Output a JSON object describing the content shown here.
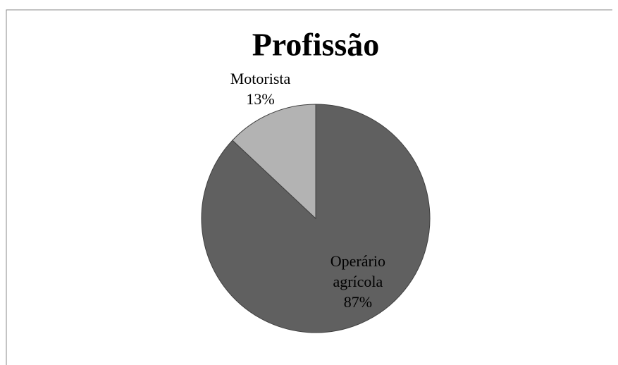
{
  "chart_data": {
    "type": "pie",
    "title": "Profissão",
    "categories": [
      "Operário agrícola",
      "Motorista"
    ],
    "values": [
      87,
      13
    ],
    "value_labels": [
      "87%",
      "13%"
    ],
    "colors": [
      "#606060",
      "#b3b3b3"
    ]
  }
}
